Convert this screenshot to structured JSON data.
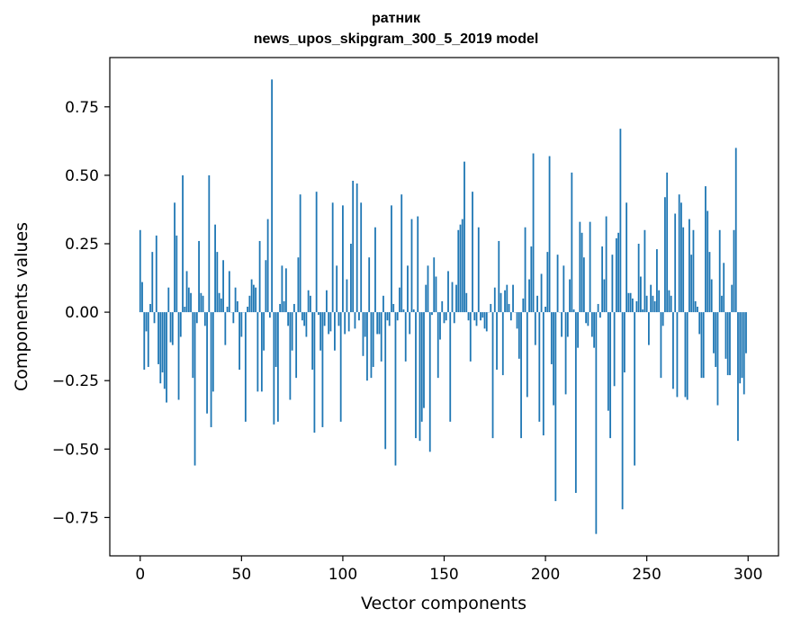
{
  "chart_data": {
    "type": "bar",
    "title_line1": "ратник",
    "title_line2": "news_upos_skipgram_300_5_2019 model",
    "xlabel": "Vector components",
    "ylabel": "Components values",
    "xlim": [
      -15,
      315
    ],
    "ylim": [
      -0.89,
      0.93
    ],
    "xticks": [
      0,
      50,
      100,
      150,
      200,
      250,
      300
    ],
    "xtick_labels": [
      "0",
      "50",
      "100",
      "150",
      "200",
      "250",
      "300"
    ],
    "yticks": [
      -0.75,
      -0.5,
      -0.25,
      0.0,
      0.25,
      0.5,
      0.75
    ],
    "ytick_labels": [
      "−0.75",
      "−0.50",
      "−0.25",
      "0.00",
      "0.25",
      "0.50",
      "0.75"
    ],
    "bar_color": "#1f77b4",
    "values": [
      0.3,
      0.11,
      -0.21,
      -0.07,
      -0.2,
      0.03,
      0.22,
      -0.04,
      0.28,
      -0.19,
      -0.26,
      -0.22,
      -0.28,
      -0.33,
      0.09,
      -0.11,
      -0.12,
      0.4,
      0.28,
      -0.32,
      -0.09,
      0.5,
      0.02,
      0.15,
      0.09,
      0.07,
      -0.24,
      -0.56,
      -0.04,
      0.26,
      0.07,
      0.06,
      -0.05,
      -0.37,
      0.5,
      -0.42,
      -0.29,
      0.32,
      0.22,
      0.07,
      0.05,
      0.19,
      -0.12,
      0.02,
      0.15,
      0.0,
      -0.04,
      0.09,
      0.04,
      -0.21,
      -0.09,
      0.0,
      -0.4,
      0.02,
      0.06,
      0.12,
      0.1,
      0.09,
      -0.29,
      0.26,
      -0.29,
      -0.14,
      0.19,
      0.34,
      -0.02,
      0.85,
      -0.41,
      -0.2,
      -0.4,
      0.03,
      0.17,
      0.04,
      0.16,
      -0.05,
      -0.32,
      -0.14,
      0.03,
      -0.24,
      0.2,
      0.43,
      -0.03,
      -0.05,
      -0.09,
      0.08,
      0.06,
      -0.21,
      -0.44,
      0.44,
      -0.01,
      -0.14,
      -0.42,
      -0.05,
      0.08,
      -0.08,
      -0.07,
      0.4,
      -0.14,
      0.17,
      -0.05,
      -0.4,
      0.39,
      -0.08,
      0.12,
      -0.07,
      0.25,
      0.48,
      -0.06,
      0.47,
      -0.03,
      0.4,
      -0.16,
      -0.09,
      -0.25,
      0.2,
      -0.24,
      -0.2,
      0.31,
      -0.08,
      -0.08,
      -0.18,
      0.06,
      -0.5,
      -0.03,
      -0.05,
      0.39,
      0.03,
      -0.56,
      -0.03,
      0.09,
      0.43,
      0.01,
      -0.18,
      0.17,
      -0.08,
      0.34,
      0.01,
      -0.46,
      0.35,
      -0.47,
      -0.4,
      -0.35,
      0.1,
      0.17,
      -0.51,
      -0.01,
      0.2,
      0.13,
      -0.24,
      -0.1,
      0.04,
      -0.04,
      -0.03,
      0.15,
      -0.4,
      0.11,
      -0.04,
      0.1,
      0.3,
      0.32,
      0.34,
      0.55,
      0.07,
      -0.03,
      -0.18,
      0.44,
      -0.03,
      -0.05,
      0.31,
      -0.03,
      -0.02,
      -0.06,
      -0.07,
      0.0,
      0.03,
      -0.46,
      0.09,
      -0.21,
      0.26,
      0.07,
      -0.23,
      0.08,
      0.1,
      0.03,
      -0.03,
      0.1,
      0.0,
      -0.06,
      -0.17,
      -0.46,
      0.05,
      0.31,
      -0.31,
      0.12,
      0.24,
      0.58,
      -0.12,
      0.06,
      -0.4,
      0.14,
      -0.45,
      0.02,
      0.22,
      0.57,
      -0.19,
      -0.34,
      -0.69,
      0.21,
      0.0,
      -0.09,
      0.17,
      -0.3,
      -0.09,
      0.12,
      0.51,
      0.01,
      -0.66,
      -0.13,
      0.33,
      0.29,
      0.2,
      -0.04,
      -0.05,
      0.33,
      -0.09,
      -0.13,
      -0.81,
      0.03,
      -0.02,
      0.24,
      0.12,
      0.35,
      -0.36,
      -0.46,
      0.21,
      -0.27,
      0.27,
      0.29,
      0.67,
      -0.72,
      -0.22,
      0.4,
      0.07,
      0.07,
      0.05,
      -0.56,
      0.04,
      0.25,
      0.13,
      0.01,
      0.3,
      0.06,
      -0.12,
      0.1,
      0.06,
      0.04,
      0.23,
      0.08,
      -0.24,
      -0.05,
      0.42,
      0.51,
      0.08,
      0.06,
      -0.28,
      0.36,
      -0.31,
      0.43,
      0.4,
      0.31,
      -0.31,
      -0.32,
      0.34,
      0.21,
      0.3,
      0.04,
      0.02,
      -0.08,
      -0.24,
      -0.24,
      0.46,
      0.37,
      0.22,
      0.12,
      -0.15,
      -0.2,
      -0.34,
      0.3,
      0.06,
      0.18,
      -0.17,
      -0.23,
      -0.23,
      0.1,
      0.3,
      0.6,
      -0.47,
      -0.26,
      -0.24,
      -0.3,
      -0.15
    ]
  }
}
